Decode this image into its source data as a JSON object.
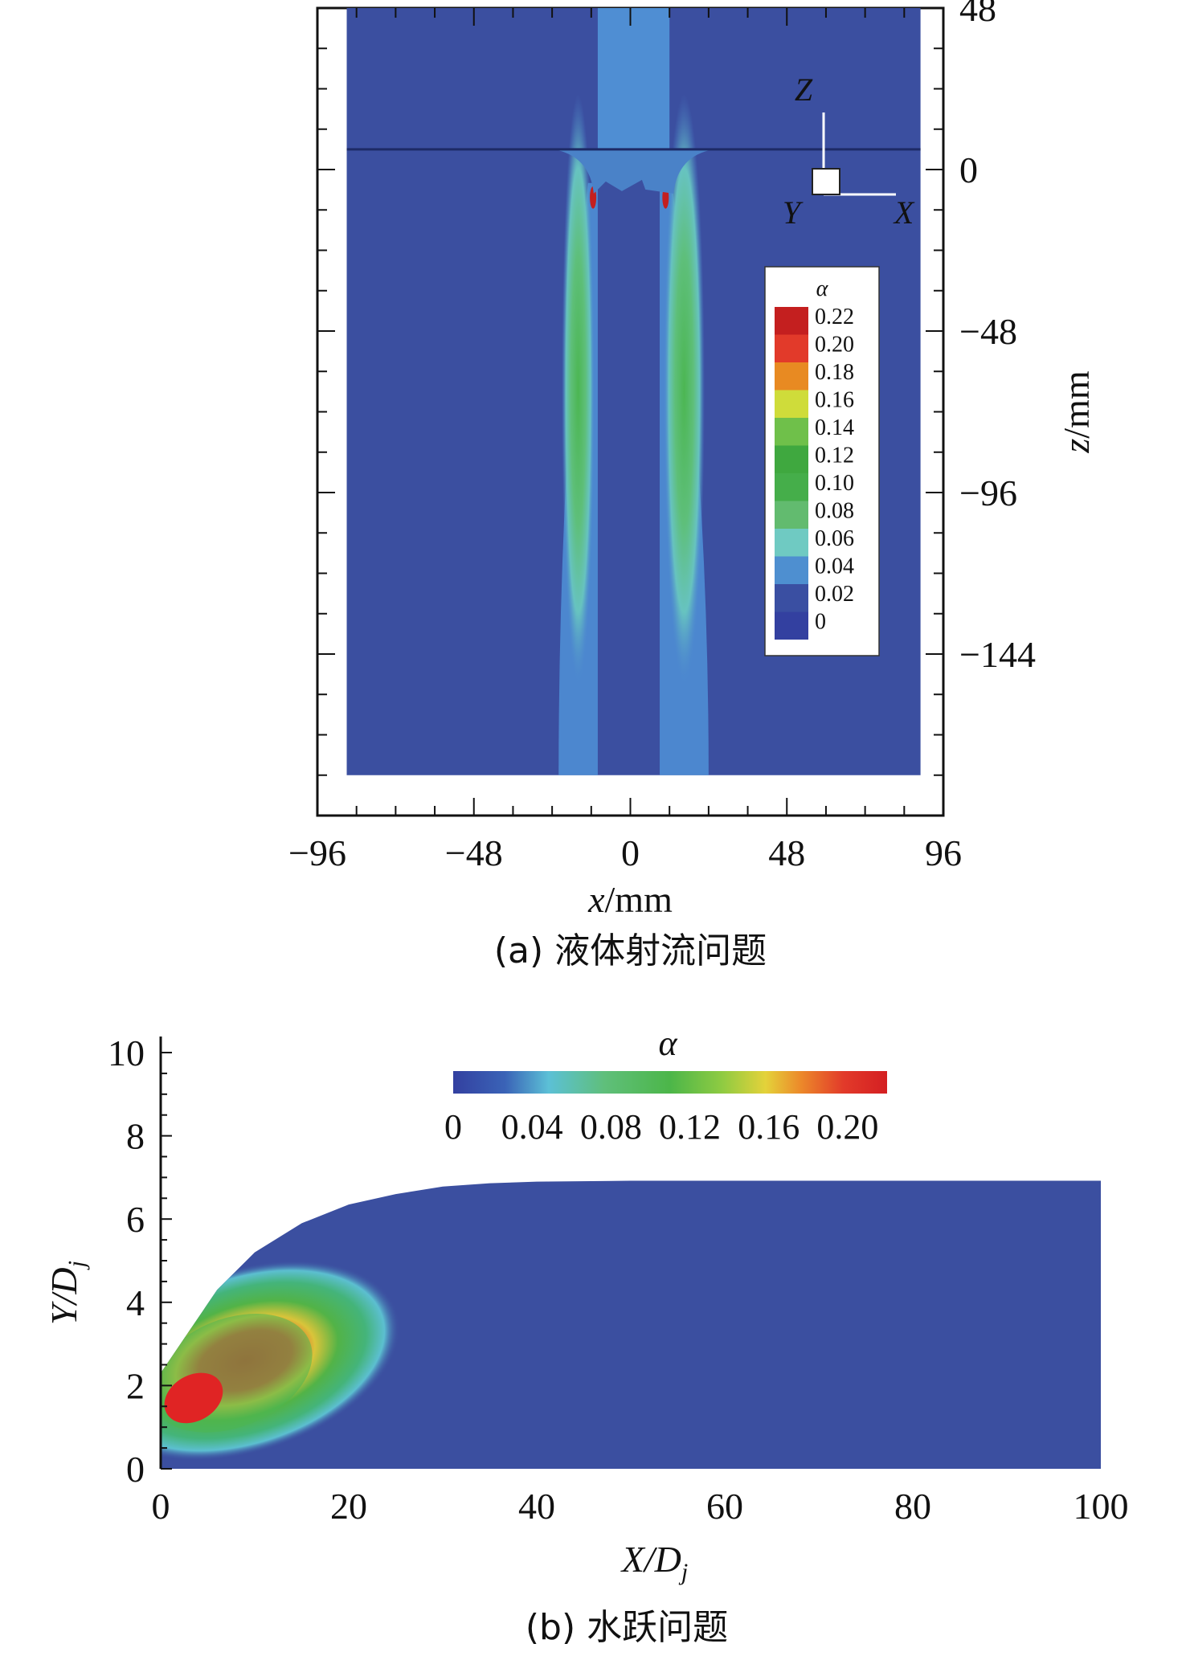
{
  "chart_data": [
    {
      "id": "a",
      "type": "heatmap",
      "caption": "(a) 液体射流问题",
      "xlabel_var": "x",
      "xlabel_unit": "/mm",
      "ylabel_var": "z",
      "ylabel_unit": "/mm",
      "xlim": [
        -96,
        96
      ],
      "ylim": [
        -192,
        48
      ],
      "x_ticks": [
        {
          "value": -96,
          "label": "−96"
        },
        {
          "value": -48,
          "label": "−48"
        },
        {
          "value": 0,
          "label": "0"
        },
        {
          "value": 48,
          "label": "48"
        },
        {
          "value": 96,
          "label": "96"
        }
      ],
      "y_ticks": [
        {
          "value": 48,
          "label": "48"
        },
        {
          "value": 0,
          "label": "0"
        },
        {
          "value": -48,
          "label": "−48"
        },
        {
          "value": -96,
          "label": "−96"
        },
        {
          "value": -144,
          "label": "−144"
        }
      ],
      "domain": {
        "x": [
          -87,
          89
        ],
        "z": [
          -180,
          48
        ]
      },
      "free_surface_z": 6,
      "nozzle": {
        "x": [
          -10,
          12
        ],
        "z_top": 48,
        "z_bottom": 6
      },
      "spray_jets": [
        {
          "x_inner": -10,
          "x_outer": -22,
          "z_top": -4,
          "z_bottom": -180
        },
        {
          "x_inner": 9,
          "x_outer": 24,
          "z_top": -4,
          "z_bottom": -180
        }
      ],
      "axis_triad": {
        "z": "Z",
        "y": "Y",
        "x": "X"
      },
      "legend": {
        "title": "α",
        "entries": [
          {
            "label": "0.22",
            "color": "#c41f1f"
          },
          {
            "label": "0.20",
            "color": "#e23a2a"
          },
          {
            "label": "0.18",
            "color": "#e88a22"
          },
          {
            "label": "0.16",
            "color": "#cfdc3a"
          },
          {
            "label": "0.14",
            "color": "#6fc04a"
          },
          {
            "label": "0.12",
            "color": "#3fa83f"
          },
          {
            "label": "0.10",
            "color": "#45ae4a"
          },
          {
            "label": "0.08",
            "color": "#62bb6f"
          },
          {
            "label": "0.06",
            "color": "#6fcac2"
          },
          {
            "label": "0.04",
            "color": "#4e8fd0"
          },
          {
            "label": "0.02",
            "color": "#3a4fa2"
          },
          {
            "label": "0",
            "color": "#3340a0"
          }
        ]
      },
      "colors": {
        "background": "#3b4fa0",
        "nozzle": "#4f8ed3",
        "jet_outer": "#4c87cf",
        "jet_inner": "#67c3c0",
        "jet_core": "#4cb652"
      }
    },
    {
      "id": "b",
      "type": "heatmap",
      "caption": "(b) 水跃问题",
      "xlabel": "X/D",
      "xlabel_sub": "j",
      "ylabel": "Y/D",
      "ylabel_sub": "j",
      "xlim": [
        0,
        100
      ],
      "ylim": [
        0,
        10
      ],
      "x_ticks": [
        0,
        20,
        40,
        60,
        80,
        100
      ],
      "y_ticks": [
        0,
        2,
        4,
        6,
        8,
        10
      ],
      "free_surface": [
        [
          0,
          2.3
        ],
        [
          3,
          3.3
        ],
        [
          6,
          4.3
        ],
        [
          10,
          5.2
        ],
        [
          15,
          5.9
        ],
        [
          20,
          6.35
        ],
        [
          25,
          6.6
        ],
        [
          30,
          6.78
        ],
        [
          35,
          6.86
        ],
        [
          40,
          6.9
        ],
        [
          50,
          6.92
        ],
        [
          100,
          6.92
        ]
      ],
      "hotspot": {
        "x": 3.5,
        "y": 1.7
      },
      "colorbar": {
        "title": "α",
        "range": [
          0,
          0.22
        ],
        "tick_labels": [
          "0",
          "0.04",
          "0.08",
          "0.12",
          "0.16",
          "0.20"
        ],
        "tick_values": [
          0,
          0.04,
          0.08,
          0.12,
          0.16,
          0.2
        ]
      },
      "colors": {
        "background": "#3b4fa0"
      }
    }
  ]
}
